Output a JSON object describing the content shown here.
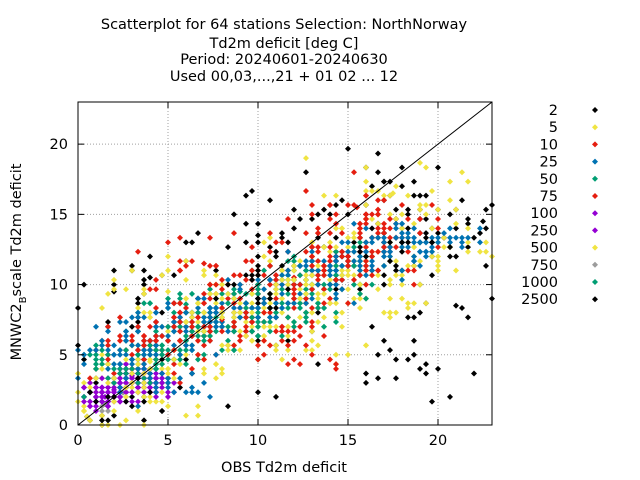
{
  "chart_data": {
    "type": "scatter",
    "title_lines": [
      "Scatterplot for   64 stations Selection: NorthNorway",
      "Td2m deficit [deg C]",
      "Period: 20240601-20240630",
      "Used 00,03,...,21 + 01 02 ... 12"
    ],
    "xlabel": "OBS Td2m deficit",
    "ylabel_main": "MNWC2",
    "ylabel_sub": "B",
    "ylabel_rest": "scale Td2m deficit",
    "xlim": [
      0,
      23
    ],
    "ylim": [
      0,
      23
    ],
    "xticks": [
      0,
      5,
      10,
      15,
      20
    ],
    "yticks": [
      0,
      5,
      10,
      15,
      20
    ],
    "grid": true,
    "legend_position": "right",
    "reference_line": "y = x",
    "series": [
      {
        "name": "2500",
        "color": "#000000",
        "core": [
          [
            0.5,
            0.6
          ],
          [
            1.5,
            1.5
          ],
          [
            3,
            4
          ],
          [
            5,
            6
          ],
          [
            7,
            7
          ],
          [
            9,
            8
          ],
          [
            11,
            10
          ],
          [
            13,
            11
          ],
          [
            15,
            12
          ],
          [
            17,
            13
          ],
          [
            19,
            13
          ],
          [
            21,
            14
          ],
          [
            22.5,
            14.5
          ],
          [
            4,
            10.5
          ],
          [
            2,
            9.5
          ],
          [
            16,
            3
          ],
          [
            19,
            4
          ],
          [
            21,
            8.5
          ],
          [
            14,
            15
          ],
          [
            17,
            16
          ],
          [
            18,
            17
          ],
          [
            12,
            14
          ],
          [
            10,
            13.5
          ]
        ],
        "spread": [
          6.5,
          4.5
        ],
        "count": 260
      },
      {
        "name": "1000",
        "color": "#009e73",
        "core": [
          [
            6,
            8.6
          ],
          [
            9,
            9.5
          ],
          [
            12,
            11
          ],
          [
            15,
            12
          ]
        ],
        "spread": [
          3.2,
          1.6
        ],
        "count": 55
      },
      {
        "name": "750",
        "color": "#9c9c9c",
        "core": [
          [
            1.5,
            1.5
          ],
          [
            2.5,
            2.3
          ]
        ],
        "spread": [
          1.0,
          0.8
        ],
        "count": 20
      },
      {
        "name": "500",
        "color": "#f0e442",
        "core": [
          [
            0.5,
            0.6
          ],
          [
            2,
            2
          ],
          [
            4,
            4.5
          ],
          [
            6,
            5
          ],
          [
            8,
            7
          ],
          [
            10,
            8
          ],
          [
            12,
            10
          ],
          [
            14,
            11
          ],
          [
            16,
            12
          ],
          [
            18,
            13
          ],
          [
            20,
            13
          ],
          [
            5,
            9.5
          ],
          [
            13,
            6
          ],
          [
            16,
            9
          ],
          [
            17.5,
            16.5
          ]
        ],
        "spread": [
          5.5,
          4.0
        ],
        "count": 400
      },
      {
        "name": "250",
        "color": "#9400d3",
        "core": [
          [
            2,
            2.5
          ],
          [
            4,
            3
          ]
        ],
        "spread": [
          2.0,
          1.5
        ],
        "count": 150
      },
      {
        "name": "100",
        "color": "#9400d3",
        "core": [
          [
            1.5,
            2
          ],
          [
            3,
            3.5
          ]
        ],
        "spread": [
          1.5,
          1.2
        ],
        "count": 80
      },
      {
        "name": "75",
        "color": "#e51e10",
        "core": [
          [
            3,
            5
          ],
          [
            5,
            6
          ],
          [
            8,
            8
          ],
          [
            10,
            9
          ],
          [
            12,
            10.5
          ],
          [
            14,
            12
          ],
          [
            16,
            13
          ],
          [
            17,
            14
          ],
          [
            15.5,
            15.5
          ],
          [
            12,
            6
          ],
          [
            7,
            11.5
          ]
        ],
        "spread": [
          5.0,
          3.5
        ],
        "count": 280
      },
      {
        "name": "50",
        "color": "#009e73",
        "core": [
          [
            2,
            4
          ],
          [
            4,
            5
          ],
          [
            6,
            6
          ],
          [
            8,
            7
          ],
          [
            10,
            8
          ],
          [
            12,
            9
          ],
          [
            14,
            10
          ]
        ],
        "spread": [
          3.5,
          2.5
        ],
        "count": 220
      },
      {
        "name": "25",
        "color": "#0072b2",
        "core": [
          [
            2,
            5
          ],
          [
            4,
            6
          ],
          [
            6,
            7
          ],
          [
            8,
            8
          ],
          [
            10,
            9
          ],
          [
            12,
            10
          ],
          [
            14,
            11
          ],
          [
            16,
            12
          ],
          [
            18,
            13
          ],
          [
            20,
            13
          ],
          [
            5,
            3
          ]
        ],
        "spread": [
          4.0,
          2.2
        ],
        "count": 320
      },
      {
        "name": "10",
        "color": "#e51e10",
        "core": [
          [
            4,
            6
          ],
          [
            8,
            7.5
          ],
          [
            12,
            10
          ],
          [
            15,
            12
          ]
        ],
        "spread": [
          4.0,
          3.0
        ],
        "count": 90
      },
      {
        "name": "5",
        "color": "#f0e442",
        "core": [
          [
            3,
            3
          ],
          [
            8,
            8
          ],
          [
            13,
            10
          ]
        ],
        "spread": [
          4.0,
          3.0
        ],
        "count": 70
      },
      {
        "name": "2",
        "color": "#000000",
        "core": [
          [
            2,
            2
          ],
          [
            10,
            9
          ],
          [
            18,
            13
          ]
        ],
        "spread": [
          4.0,
          3.0
        ],
        "count": 40
      }
    ]
  }
}
